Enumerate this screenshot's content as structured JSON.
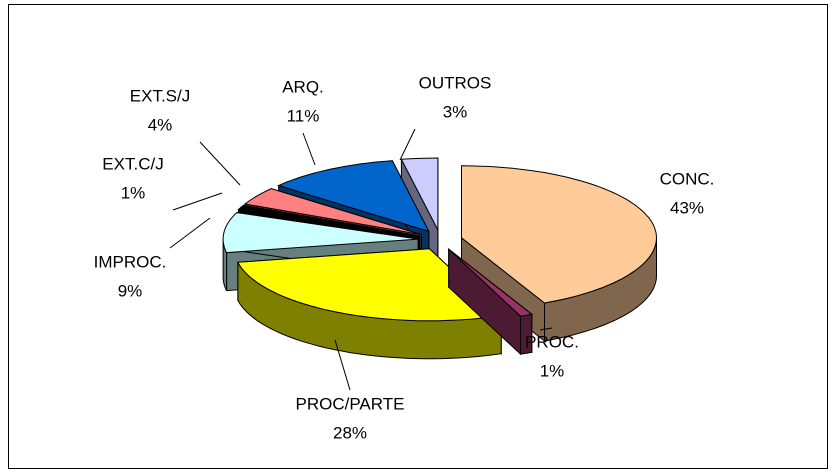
{
  "chart_data": {
    "type": "pie3d",
    "categories": [
      "CONC.",
      "PROC.",
      "PROC/PARTE",
      "IMPROC.",
      "EXT.C/J",
      "EXT.S/J",
      "ARQ.",
      "OUTROS"
    ],
    "values": [
      43,
      1,
      28,
      9,
      1,
      4,
      11,
      3
    ],
    "value_labels": [
      "43%",
      "1%",
      "28%",
      "9%",
      "1%",
      "4%",
      "11%",
      "3%"
    ],
    "colors": [
      "#ffcc99",
      "#993366",
      "#ffff00",
      "#ccffff",
      "#000000",
      "#ff8080",
      "#0066cc",
      "#ccccff"
    ]
  }
}
